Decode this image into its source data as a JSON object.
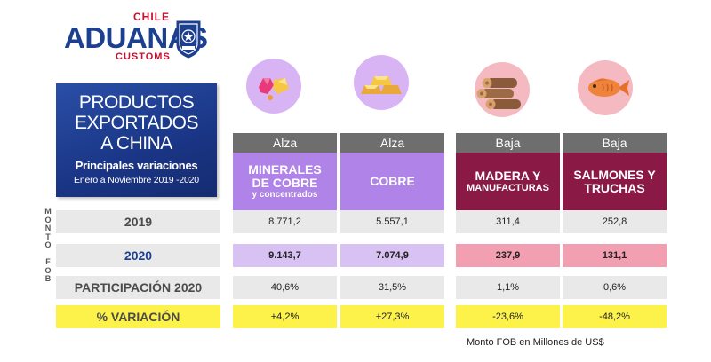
{
  "logo": {
    "top": "CHILE",
    "main": "ADUANAS",
    "bottom": "CUSTOMS",
    "shield_text": "ADUANA CHILE"
  },
  "title": {
    "line1": "PRODUCTOS",
    "line2": "EXPORTADOS",
    "line3": "A CHINA",
    "subtitle": "Principales variaciones",
    "period": "Enero a Noviembre 2019 -2020"
  },
  "vertical_label": "MONTO FOB",
  "row_labels": {
    "y2019": "2019",
    "y2020": "2020",
    "share": "PARTICIPACIÓN 2020",
    "variation": "% VARIACIÓN"
  },
  "footnote": "Monto FOB en Millones de US$",
  "colors": {
    "title_box": "#1a3585",
    "trend_header": "#6e6e6e",
    "mineral_purple": "#b083e8",
    "wood_crimson": "#8a1a45",
    "variation_yellow": "#fdf24a"
  },
  "chart_data": {
    "type": "table",
    "columns": [
      {
        "trend": "Alza",
        "name_main": "MINERALES DE COBRE",
        "name_sub": "y concentrados",
        "icon": "minerals-icon",
        "v2019": "8.771,2",
        "v2020": "9.143,7",
        "share": "40,6%",
        "variation": "+4,2%"
      },
      {
        "trend": "Alza",
        "name_main": "COBRE",
        "name_sub": "",
        "icon": "copper-bars-icon",
        "v2019": "5.557,1",
        "v2020": "7.074,9",
        "share": "31,5%",
        "variation": "+27,3%"
      },
      {
        "trend": "Baja",
        "name_main": "MADERA Y",
        "name_sub": "MANUFACTURAS",
        "icon": "wood-logs-icon",
        "v2019": "311,4",
        "v2020": "237,9",
        "share": "1,1%",
        "variation": "-23,6%"
      },
      {
        "trend": "Baja",
        "name_main": "SALMONES Y TRUCHAS",
        "name_sub": "",
        "icon": "fish-icon",
        "v2019": "252,8",
        "v2020": "131,1",
        "share": "0,6%",
        "variation": "-48,2%"
      }
    ]
  }
}
